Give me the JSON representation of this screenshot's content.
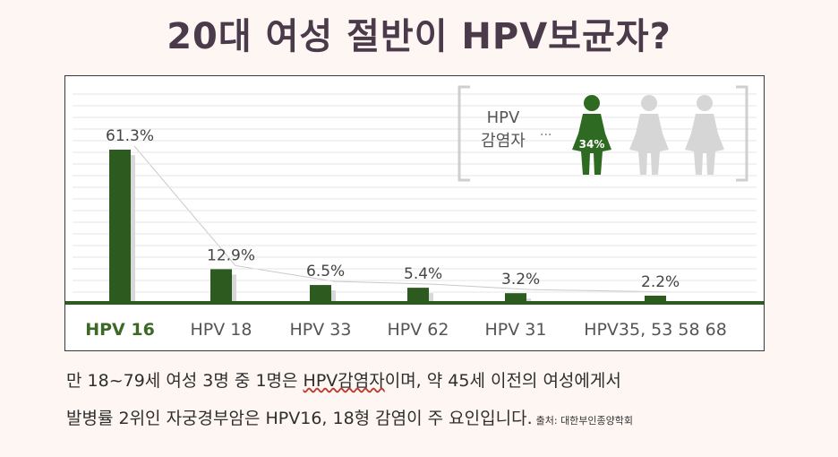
{
  "title": "20대 여성 절반이 HPV보균자?",
  "chart_data": {
    "type": "bar",
    "categories": [
      "HPV 16",
      "HPV 18",
      "HPV 33",
      "HPV 62",
      "HPV 31",
      "HPV35, 53 58 68"
    ],
    "values": [
      61.3,
      12.9,
      6.5,
      5.4,
      3.2,
      2.2
    ],
    "value_labels": [
      "61.3%",
      "12.9%",
      "6.5%",
      "5.4%",
      "3.2%",
      "2.2%"
    ],
    "ylim": [
      0,
      70
    ],
    "grid": true,
    "highlight_category_index": 0,
    "colors": {
      "bar": "#2d5a1f",
      "highlight_label": "#3b6a26",
      "label": "#555555",
      "grid": "#e4e4e4"
    },
    "inset": {
      "label_line1": "HPV",
      "label_line2": "감염자",
      "ellipsis": "···",
      "percent": "34%",
      "figure_colors": {
        "infected": "#2f6a22",
        "other": "#d6d6d6"
      }
    }
  },
  "caption": {
    "line1_a": "만 18~79세 여성 3명 중 1명은 ",
    "line1_b": "HPV감염자",
    "line1_c": "이며, 약 45세 이전의 여성에게서",
    "line2": "발병률 2위인 자궁경부암은 HPV16, 18형 감염이 주 요인입니다.",
    "source": "출처: 대한부인종양학회"
  }
}
